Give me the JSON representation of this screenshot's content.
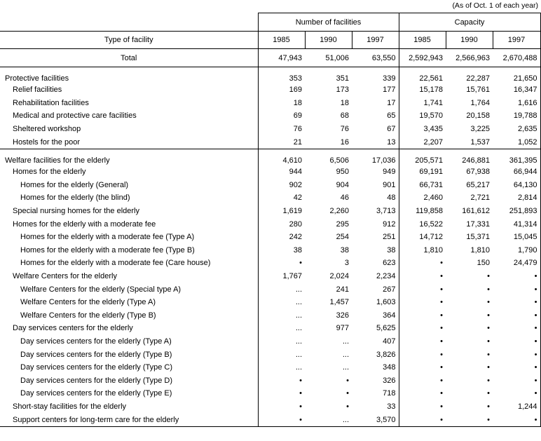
{
  "note": "(As of Oct. 1 of each year)",
  "header": {
    "type_col": "Type of facility",
    "groups": [
      "Number of facilities",
      "Capacity"
    ],
    "years": [
      "1985",
      "1990",
      "1997",
      "1985",
      "1990",
      "1997"
    ]
  },
  "total": {
    "label": "Total",
    "values": [
      "47,943",
      "51,006",
      "63,550",
      "2,592,943",
      "2,566,963",
      "2,670,488"
    ]
  },
  "sections": [
    {
      "rows": [
        {
          "label": "Protective facilities",
          "values": [
            "353",
            "351",
            "339",
            "22,561",
            "22,287",
            "21,650"
          ]
        },
        {
          "label": "Relief facilities",
          "values": [
            "169",
            "173",
            "177",
            "15,178",
            "15,761",
            "16,347"
          ]
        },
        {
          "label": "Rehabilitation facilities",
          "values": [
            "18",
            "18",
            "17",
            "1,741",
            "1,764",
            "1,616"
          ]
        },
        {
          "label": "Medical and protective care facilities",
          "values": [
            "69",
            "68",
            "65",
            "19,570",
            "20,158",
            "19,788"
          ]
        },
        {
          "label": "Sheltered workshop",
          "values": [
            "76",
            "76",
            "67",
            "3,435",
            "3,225",
            "2,635"
          ]
        },
        {
          "label": "Hostels for the poor",
          "values": [
            "21",
            "16",
            "13",
            "2,207",
            "1,537",
            "1,052"
          ]
        }
      ]
    },
    {
      "rows": [
        {
          "label": "Welfare facilities for the elderly",
          "values": [
            "4,610",
            "6,506",
            "17,036",
            "205,571",
            "246,881",
            "361,395"
          ]
        },
        {
          "label": "Homes for the elderly",
          "values": [
            "944",
            "950",
            "949",
            "69,191",
            "67,938",
            "66,944"
          ]
        },
        {
          "label": "Homes for the elderly (General)",
          "values": [
            "902",
            "904",
            "901",
            "66,731",
            "65,217",
            "64,130"
          ]
        },
        {
          "label": "Homes for the elderly (the blind)",
          "values": [
            "42",
            "46",
            "48",
            "2,460",
            "2,721",
            "2,814"
          ]
        },
        {
          "label": "Special nursing homes for the elderly",
          "values": [
            "1,619",
            "2,260",
            "3,713",
            "119,858",
            "161,612",
            "251,893"
          ]
        },
        {
          "label": "Homes for the elderly with a moderate fee",
          "values": [
            "280",
            "295",
            "912",
            "16,522",
            "17,331",
            "41,314"
          ]
        },
        {
          "label": "Homes for the elderly with a moderate fee (Type A)",
          "values": [
            "242",
            "254",
            "251",
            "14,712",
            "15,371",
            "15,045"
          ]
        },
        {
          "label": "Homes for the elderly with a moderate fee (Type B)",
          "values": [
            "38",
            "38",
            "38",
            "1,810",
            "1,810",
            "1,790"
          ]
        },
        {
          "label": "Homes for the elderly with a moderate fee (Care house)",
          "values": [
            "•",
            "3",
            "623",
            "•",
            "150",
            "24,479"
          ]
        },
        {
          "label": "Welfare Centers for the elderly",
          "values": [
            "1,767",
            "2,024",
            "2,234",
            "•",
            "•",
            "•"
          ]
        },
        {
          "label": "Welfare Centers for the elderly (Special type A)",
          "values": [
            "...",
            "241",
            "267",
            "•",
            "•",
            "•"
          ]
        },
        {
          "label": "Welfare Centers for the elderly (Type A)",
          "values": [
            "...",
            "1,457",
            "1,603",
            "•",
            "•",
            "•"
          ]
        },
        {
          "label": "Welfare Centers for the elderly (Type B)",
          "values": [
            "...",
            "326",
            "364",
            "•",
            "•",
            "•"
          ]
        },
        {
          "label": "Day services centers for the elderly",
          "values": [
            "...",
            "977",
            "5,625",
            "•",
            "•",
            "•"
          ]
        },
        {
          "label": "Day services centers for the elderly (Type A)",
          "values": [
            "...",
            "...",
            "407",
            "•",
            "•",
            "•"
          ]
        },
        {
          "label": "Day services centers for the elderly (Type B)",
          "values": [
            "...",
            "...",
            "3,826",
            "•",
            "•",
            "•"
          ]
        },
        {
          "label": "Day services centers for the elderly (Type C)",
          "values": [
            "...",
            "...",
            "348",
            "•",
            "•",
            "•"
          ]
        },
        {
          "label": "Day services centers for the elderly (Type D)",
          "values": [
            "•",
            "•",
            "326",
            "•",
            "•",
            "•"
          ]
        },
        {
          "label": "Day services centers for the elderly (Type E)",
          "values": [
            "•",
            "•",
            "718",
            "•",
            "•",
            "•"
          ]
        },
        {
          "label": "Short-stay facilities for the elderly",
          "values": [
            "•",
            "•",
            "33",
            "•",
            "•",
            "1,244"
          ]
        },
        {
          "label": "Support centers for long-term care for the elderly",
          "values": [
            "•",
            "...",
            "3,570",
            "•",
            "•",
            "•"
          ]
        }
      ]
    }
  ]
}
